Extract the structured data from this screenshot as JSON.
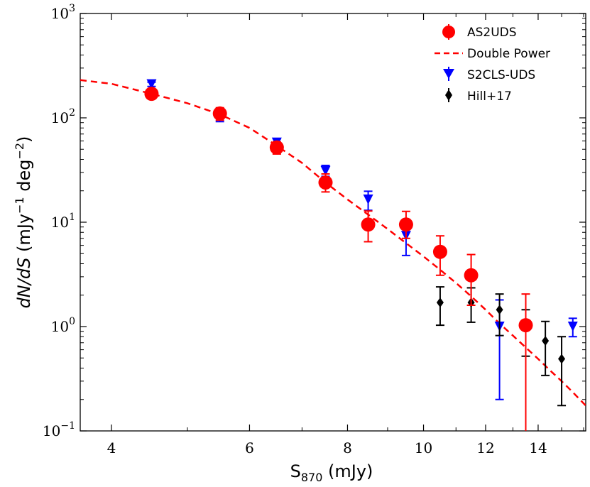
{
  "chart_data": {
    "type": "scatter",
    "title": "",
    "xlabel_main": "S",
    "xlabel_sub": "870",
    "xlabel_unit": " (mJy)",
    "ylabel_italic": "dN/dS",
    "ylabel_unit_a": " (mJy",
    "ylabel_exp_a": "−1",
    "ylabel_unit_b": " deg",
    "ylabel_exp_b": "−2",
    "ylabel_close": ")",
    "x_scale": "log",
    "y_scale": "log",
    "xlim": [
      3.65,
      16.1
    ],
    "ylim": [
      0.1,
      1000
    ],
    "x_ticks": [
      {
        "value": 4,
        "label": "4"
      },
      {
        "value": 6,
        "label": "6"
      },
      {
        "value": 8,
        "label": "8"
      },
      {
        "value": 10,
        "label": "10"
      },
      {
        "value": 12,
        "label": "12"
      },
      {
        "value": 14,
        "label": "14"
      }
    ],
    "y_ticks": [
      {
        "value": 0.1,
        "base": "10",
        "exp": "−1"
      },
      {
        "value": 1,
        "base": "10",
        "exp": "0"
      },
      {
        "value": 10,
        "base": "10",
        "exp": "1"
      },
      {
        "value": 100,
        "base": "10",
        "exp": "2"
      },
      {
        "value": 1000,
        "base": "10",
        "exp": "3"
      }
    ],
    "legend_position": "top-right",
    "series": [
      {
        "name": "AS2UDS",
        "marker": "circle",
        "color": "#ff0000",
        "points": [
          {
            "x": 4.5,
            "y": 170,
            "lo": 155,
            "hi": 185
          },
          {
            "x": 5.5,
            "y": 110,
            "lo": 95,
            "hi": 125
          },
          {
            "x": 6.5,
            "y": 52,
            "lo": 45,
            "hi": 59
          },
          {
            "x": 7.5,
            "y": 24,
            "lo": 19.5,
            "hi": 29
          },
          {
            "x": 8.5,
            "y": 9.5,
            "lo": 6.5,
            "hi": 12.8
          },
          {
            "x": 9.5,
            "y": 9.5,
            "lo": 7.0,
            "hi": 12.7
          },
          {
            "x": 10.5,
            "y": 5.2,
            "lo": 3.1,
            "hi": 7.4
          },
          {
            "x": 11.5,
            "y": 3.1,
            "lo": 1.6,
            "hi": 4.9
          },
          {
            "x": 13.5,
            "y": 1.03,
            "lo": 0.08,
            "hi": 2.05
          }
        ]
      },
      {
        "name": "Double Power",
        "line": "dashed",
        "color": "#ff0000",
        "curve": [
          [
            3.65,
            230
          ],
          [
            4.0,
            212
          ],
          [
            4.5,
            170
          ],
          [
            5.0,
            138
          ],
          [
            5.5,
            108
          ],
          [
            6.0,
            80
          ],
          [
            6.5,
            54
          ],
          [
            7.0,
            37
          ],
          [
            7.5,
            24
          ],
          [
            8.0,
            16.5
          ],
          [
            8.5,
            11.8
          ],
          [
            9.0,
            8.6
          ],
          [
            9.5,
            6.3
          ],
          [
            10.0,
            4.7
          ],
          [
            10.5,
            3.5
          ],
          [
            11.0,
            2.62
          ],
          [
            11.5,
            1.95
          ],
          [
            12.0,
            1.45
          ],
          [
            12.5,
            1.07
          ],
          [
            13.0,
            0.82
          ],
          [
            13.5,
            0.63
          ],
          [
            14.0,
            0.49
          ],
          [
            14.5,
            0.38
          ],
          [
            15.0,
            0.3
          ],
          [
            15.5,
            0.235
          ],
          [
            16.1,
            0.175
          ]
        ]
      },
      {
        "name": "S2CLS-UDS",
        "marker": "triangle-down",
        "color": "#0000ff",
        "points": [
          {
            "x": 4.5,
            "y": 210,
            "lo": 200,
            "hi": 220
          },
          {
            "x": 5.5,
            "y": 105,
            "lo": 92,
            "hi": 118
          },
          {
            "x": 6.5,
            "y": 58,
            "lo": 53,
            "hi": 63
          },
          {
            "x": 7.5,
            "y": 31,
            "lo": 27.5,
            "hi": 35
          },
          {
            "x": 8.5,
            "y": 16.5,
            "lo": 13,
            "hi": 19.8
          },
          {
            "x": 9.5,
            "y": 7.4,
            "lo": 4.8,
            "hi": 8.6
          },
          {
            "x": 12.5,
            "y": 1.0,
            "lo": 0.2,
            "hi": 1.8
          },
          {
            "x": 15.5,
            "y": 1.0,
            "lo": 0.8,
            "hi": 1.2
          }
        ]
      },
      {
        "name": "Hill+17",
        "marker": "diamond",
        "color": "#000000",
        "points": [
          {
            "x": 10.5,
            "y": 1.7,
            "lo": 1.03,
            "hi": 2.4
          },
          {
            "x": 11.5,
            "y": 1.7,
            "lo": 1.1,
            "hi": 2.35
          },
          {
            "x": 12.5,
            "y": 1.45,
            "lo": 0.82,
            "hi": 2.05
          },
          {
            "x": 13.5,
            "y": 0.98,
            "lo": 0.52,
            "hi": 1.45
          },
          {
            "x": 14.3,
            "y": 0.73,
            "lo": 0.34,
            "hi": 1.12
          },
          {
            "x": 15.0,
            "y": 0.49,
            "lo": 0.175,
            "hi": 0.8
          }
        ]
      }
    ]
  }
}
